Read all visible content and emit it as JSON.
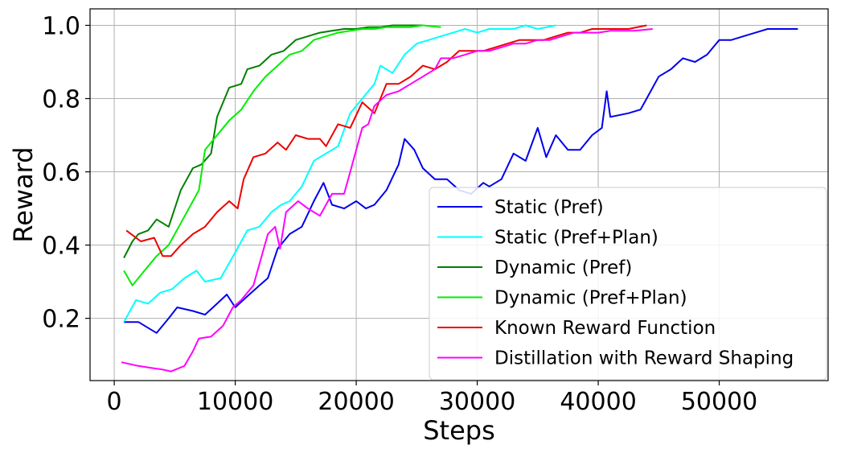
{
  "chart_data": {
    "type": "line",
    "xlabel": "Steps",
    "ylabel": "Reward",
    "xlim": [
      -2000,
      59000
    ],
    "ylim": [
      0.03,
      1.045
    ],
    "xticks": [
      0,
      10000,
      20000,
      30000,
      40000,
      50000
    ],
    "yticks": [
      0.2,
      0.4,
      0.6,
      0.8,
      1.0
    ],
    "xtick_labels": [
      "0",
      "10000",
      "20000",
      "30000",
      "40000",
      "50000"
    ],
    "ytick_labels": [
      "0.2",
      "0.4",
      "0.6",
      "0.8",
      "1.0"
    ],
    "grid": true,
    "legend_position": "lower-right",
    "series": [
      {
        "name": "Static (Pref)",
        "color": "#0000ee",
        "points": [
          [
            800,
            0.19
          ],
          [
            2000,
            0.19
          ],
          [
            3000,
            0.17
          ],
          [
            3500,
            0.16
          ],
          [
            4500,
            0.2
          ],
          [
            5200,
            0.23
          ],
          [
            6500,
            0.22
          ],
          [
            7500,
            0.21
          ],
          [
            8500,
            0.24
          ],
          [
            9300,
            0.265
          ],
          [
            10000,
            0.23
          ],
          [
            11000,
            0.26
          ],
          [
            12000,
            0.29
          ],
          [
            12700,
            0.31
          ],
          [
            13500,
            0.39
          ],
          [
            14500,
            0.43
          ],
          [
            15500,
            0.45
          ],
          [
            16500,
            0.52
          ],
          [
            17300,
            0.57
          ],
          [
            18000,
            0.51
          ],
          [
            19000,
            0.5
          ],
          [
            20000,
            0.52
          ],
          [
            20800,
            0.5
          ],
          [
            21500,
            0.51
          ],
          [
            22500,
            0.55
          ],
          [
            23500,
            0.62
          ],
          [
            24000,
            0.69
          ],
          [
            24800,
            0.66
          ],
          [
            25500,
            0.61
          ],
          [
            26500,
            0.58
          ],
          [
            27500,
            0.58
          ],
          [
            28500,
            0.55
          ],
          [
            29500,
            0.54
          ],
          [
            30500,
            0.57
          ],
          [
            31000,
            0.56
          ],
          [
            32000,
            0.58
          ],
          [
            33000,
            0.65
          ],
          [
            34000,
            0.63
          ],
          [
            35000,
            0.72
          ],
          [
            35700,
            0.64
          ],
          [
            36500,
            0.7
          ],
          [
            37500,
            0.66
          ],
          [
            38500,
            0.66
          ],
          [
            39500,
            0.7
          ],
          [
            40300,
            0.72
          ],
          [
            40700,
            0.82
          ],
          [
            41000,
            0.75
          ],
          [
            42500,
            0.76
          ],
          [
            43500,
            0.77
          ],
          [
            44000,
            0.8
          ],
          [
            45000,
            0.86
          ],
          [
            46000,
            0.88
          ],
          [
            47000,
            0.91
          ],
          [
            48000,
            0.9
          ],
          [
            49000,
            0.92
          ],
          [
            50000,
            0.96
          ],
          [
            51000,
            0.96
          ],
          [
            52000,
            0.97
          ],
          [
            53000,
            0.98
          ],
          [
            54000,
            0.99
          ],
          [
            55000,
            0.99
          ],
          [
            56500,
            0.99
          ]
        ]
      },
      {
        "name": "Static (Pref+Plan)",
        "color": "#00ffff",
        "points": [
          [
            800,
            0.19
          ],
          [
            1800,
            0.25
          ],
          [
            2800,
            0.24
          ],
          [
            3800,
            0.27
          ],
          [
            4800,
            0.28
          ],
          [
            5800,
            0.31
          ],
          [
            6800,
            0.33
          ],
          [
            7500,
            0.3
          ],
          [
            8800,
            0.31
          ],
          [
            10000,
            0.38
          ],
          [
            11000,
            0.44
          ],
          [
            12000,
            0.45
          ],
          [
            13000,
            0.49
          ],
          [
            13800,
            0.51
          ],
          [
            14500,
            0.52
          ],
          [
            15500,
            0.56
          ],
          [
            16500,
            0.63
          ],
          [
            17500,
            0.65
          ],
          [
            18500,
            0.67
          ],
          [
            19500,
            0.76
          ],
          [
            20500,
            0.8
          ],
          [
            21500,
            0.84
          ],
          [
            22000,
            0.89
          ],
          [
            23000,
            0.87
          ],
          [
            24000,
            0.92
          ],
          [
            25000,
            0.95
          ],
          [
            26000,
            0.96
          ],
          [
            27000,
            0.97
          ],
          [
            28000,
            0.98
          ],
          [
            29000,
            0.99
          ],
          [
            30000,
            0.98
          ],
          [
            31000,
            0.99
          ],
          [
            32000,
            0.99
          ],
          [
            33000,
            0.99
          ],
          [
            34000,
            1.0
          ],
          [
            35000,
            0.99
          ],
          [
            36500,
            1.0
          ]
        ]
      },
      {
        "name": "Dynamic (Pref)",
        "color": "#008000",
        "points": [
          [
            800,
            0.365
          ],
          [
            1500,
            0.41
          ],
          [
            2000,
            0.43
          ],
          [
            2800,
            0.44
          ],
          [
            3500,
            0.47
          ],
          [
            4500,
            0.45
          ],
          [
            5500,
            0.55
          ],
          [
            6500,
            0.61
          ],
          [
            7200,
            0.62
          ],
          [
            8000,
            0.65
          ],
          [
            8500,
            0.75
          ],
          [
            9500,
            0.83
          ],
          [
            10500,
            0.84
          ],
          [
            11000,
            0.88
          ],
          [
            12000,
            0.89
          ],
          [
            13000,
            0.92
          ],
          [
            14000,
            0.93
          ],
          [
            15000,
            0.96
          ],
          [
            16000,
            0.97
          ],
          [
            17000,
            0.98
          ],
          [
            18000,
            0.985
          ],
          [
            19000,
            0.99
          ],
          [
            20000,
            0.99
          ],
          [
            21000,
            0.995
          ],
          [
            22000,
            0.995
          ],
          [
            23000,
            1.0
          ],
          [
            24000,
            1.0
          ],
          [
            25500,
            1.0
          ]
        ]
      },
      {
        "name": "Dynamic (Pref+Plan)",
        "color": "#00ee00",
        "points": [
          [
            800,
            0.33
          ],
          [
            1500,
            0.29
          ],
          [
            2500,
            0.33
          ],
          [
            3500,
            0.37
          ],
          [
            4500,
            0.4
          ],
          [
            5500,
            0.46
          ],
          [
            6500,
            0.52
          ],
          [
            7000,
            0.55
          ],
          [
            7500,
            0.66
          ],
          [
            8500,
            0.7
          ],
          [
            9500,
            0.74
          ],
          [
            10500,
            0.77
          ],
          [
            11500,
            0.82
          ],
          [
            12500,
            0.86
          ],
          [
            13500,
            0.89
          ],
          [
            14500,
            0.92
          ],
          [
            15500,
            0.93
          ],
          [
            16500,
            0.96
          ],
          [
            17500,
            0.97
          ],
          [
            18500,
            0.98
          ],
          [
            19500,
            0.985
          ],
          [
            20500,
            0.99
          ],
          [
            21500,
            0.99
          ],
          [
            22500,
            0.995
          ],
          [
            23500,
            0.995
          ],
          [
            24500,
            0.995
          ],
          [
            25500,
            1.0
          ],
          [
            27000,
            0.995
          ]
        ]
      },
      {
        "name": "Known Reward Function",
        "color": "#ee0000",
        "points": [
          [
            1000,
            0.44
          ],
          [
            2200,
            0.41
          ],
          [
            3300,
            0.42
          ],
          [
            4000,
            0.37
          ],
          [
            4700,
            0.37
          ],
          [
            5500,
            0.4
          ],
          [
            6500,
            0.43
          ],
          [
            7500,
            0.45
          ],
          [
            8500,
            0.49
          ],
          [
            9500,
            0.52
          ],
          [
            10200,
            0.5
          ],
          [
            10700,
            0.58
          ],
          [
            11500,
            0.64
          ],
          [
            12500,
            0.65
          ],
          [
            13500,
            0.68
          ],
          [
            14200,
            0.66
          ],
          [
            15000,
            0.7
          ],
          [
            16000,
            0.69
          ],
          [
            17000,
            0.69
          ],
          [
            17500,
            0.67
          ],
          [
            18500,
            0.73
          ],
          [
            19500,
            0.72
          ],
          [
            20500,
            0.79
          ],
          [
            21500,
            0.76
          ],
          [
            22500,
            0.84
          ],
          [
            23500,
            0.84
          ],
          [
            24500,
            0.86
          ],
          [
            25500,
            0.89
          ],
          [
            26500,
            0.88
          ],
          [
            27500,
            0.9
          ],
          [
            28500,
            0.93
          ],
          [
            29500,
            0.93
          ],
          [
            30500,
            0.93
          ],
          [
            31500,
            0.94
          ],
          [
            32500,
            0.95
          ],
          [
            33500,
            0.96
          ],
          [
            34500,
            0.96
          ],
          [
            35500,
            0.96
          ],
          [
            36500,
            0.97
          ],
          [
            37500,
            0.98
          ],
          [
            38500,
            0.98
          ],
          [
            39500,
            0.99
          ],
          [
            40500,
            0.99
          ],
          [
            41500,
            0.99
          ],
          [
            42500,
            0.99
          ],
          [
            44000,
            1.0
          ]
        ]
      },
      {
        "name": "Distillation with Reward Shaping",
        "color": "#ff00ff",
        "points": [
          [
            600,
            0.08
          ],
          [
            2000,
            0.07
          ],
          [
            3000,
            0.065
          ],
          [
            4000,
            0.06
          ],
          [
            4700,
            0.055
          ],
          [
            5800,
            0.07
          ],
          [
            6500,
            0.11
          ],
          [
            7000,
            0.145
          ],
          [
            8000,
            0.15
          ],
          [
            9000,
            0.18
          ],
          [
            9800,
            0.23
          ],
          [
            10500,
            0.25
          ],
          [
            11500,
            0.29
          ],
          [
            12700,
            0.43
          ],
          [
            13300,
            0.45
          ],
          [
            13700,
            0.39
          ],
          [
            14200,
            0.49
          ],
          [
            15200,
            0.52
          ],
          [
            16000,
            0.5
          ],
          [
            17000,
            0.48
          ],
          [
            18000,
            0.54
          ],
          [
            19000,
            0.54
          ],
          [
            19500,
            0.6
          ],
          [
            20000,
            0.66
          ],
          [
            20500,
            0.72
          ],
          [
            21000,
            0.73
          ],
          [
            21500,
            0.78
          ],
          [
            22500,
            0.81
          ],
          [
            23500,
            0.82
          ],
          [
            24500,
            0.84
          ],
          [
            25500,
            0.86
          ],
          [
            26500,
            0.88
          ],
          [
            27000,
            0.91
          ],
          [
            28000,
            0.91
          ],
          [
            29000,
            0.92
          ],
          [
            30000,
            0.93
          ],
          [
            31000,
            0.93
          ],
          [
            32000,
            0.94
          ],
          [
            33000,
            0.95
          ],
          [
            34000,
            0.95
          ],
          [
            35000,
            0.96
          ],
          [
            36000,
            0.96
          ],
          [
            37000,
            0.97
          ],
          [
            38000,
            0.98
          ],
          [
            39000,
            0.98
          ],
          [
            40000,
            0.98
          ],
          [
            41000,
            0.985
          ],
          [
            42000,
            0.985
          ],
          [
            43000,
            0.985
          ],
          [
            44500,
            0.99
          ]
        ]
      }
    ]
  }
}
